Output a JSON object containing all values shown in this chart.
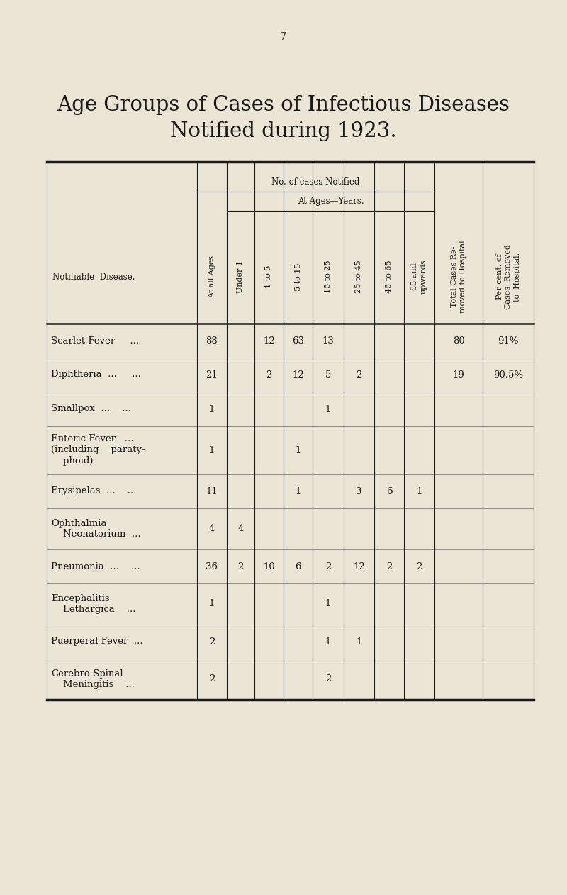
{
  "title_line1": "Age Groups of Cases of Infectious Diseases",
  "title_line2": "Notified during 1923.",
  "page_number": "7",
  "bg_color": "#EAE5D5",
  "text_color": "#1a1a1a",
  "rows": [
    {
      "disease_lines": [
        "Scarlet Fever",
        "..."
      ],
      "vals": [
        "88",
        "",
        "12",
        "63",
        "13",
        "",
        "",
        "",
        "80",
        "91%"
      ]
    },
    {
      "disease_lines": [
        "Diphtheria ...",
        "..."
      ],
      "vals": [
        "21",
        "",
        "2",
        "12",
        "5",
        "2",
        "",
        "",
        "19",
        "90.5%"
      ]
    },
    {
      "disease_lines": [
        "Smallpox",
        "...",
        ".."
      ],
      "vals": [
        "1",
        "",
        "",
        "",
        "1",
        "",
        "",
        "",
        "",
        ""
      ]
    },
    {
      "disease_lines": [
        "Enteric Fever",
        "...",
        "(including    paraty-",
        "    phoid)"
      ],
      "vals": [
        "1",
        "",
        "",
        "1",
        "",
        "",
        "",
        "",
        "",
        ""
      ]
    },
    {
      "disease_lines": [
        "Erysipelas ...",
        "..."
      ],
      "vals": [
        "11",
        "",
        "",
        "1",
        "",
        "3",
        "6",
        "1",
        "",
        ""
      ]
    },
    {
      "disease_lines": [
        "Ophthalmia",
        "    Neonatorium",
        "..."
      ],
      "vals": [
        "4",
        "4",
        "",
        "",
        "",
        "",
        "",
        "",
        "",
        ""
      ]
    },
    {
      "disease_lines": [
        "Pneumonia ...",
        "..."
      ],
      "vals": [
        "36",
        "2",
        "10",
        "6",
        "2",
        "12",
        "2",
        "2",
        "",
        ""
      ]
    },
    {
      "disease_lines": [
        "Encephalitis",
        "    Lethargica",
        "..."
      ],
      "vals": [
        "1",
        "",
        "",
        "",
        "1",
        "",
        "",
        "",
        "",
        ""
      ]
    },
    {
      "disease_lines": [
        "Puerperal Fever",
        "..."
      ],
      "vals": [
        "2",
        "",
        "",
        "",
        "1",
        "1",
        "",
        "",
        "",
        ""
      ]
    },
    {
      "disease_lines": [
        "Cerebro-Spinal",
        "    Meningitis",
        "..."
      ],
      "vals": [
        "2",
        "",
        "",
        "",
        "2",
        "",
        "",
        "",
        "",
        ""
      ]
    }
  ]
}
